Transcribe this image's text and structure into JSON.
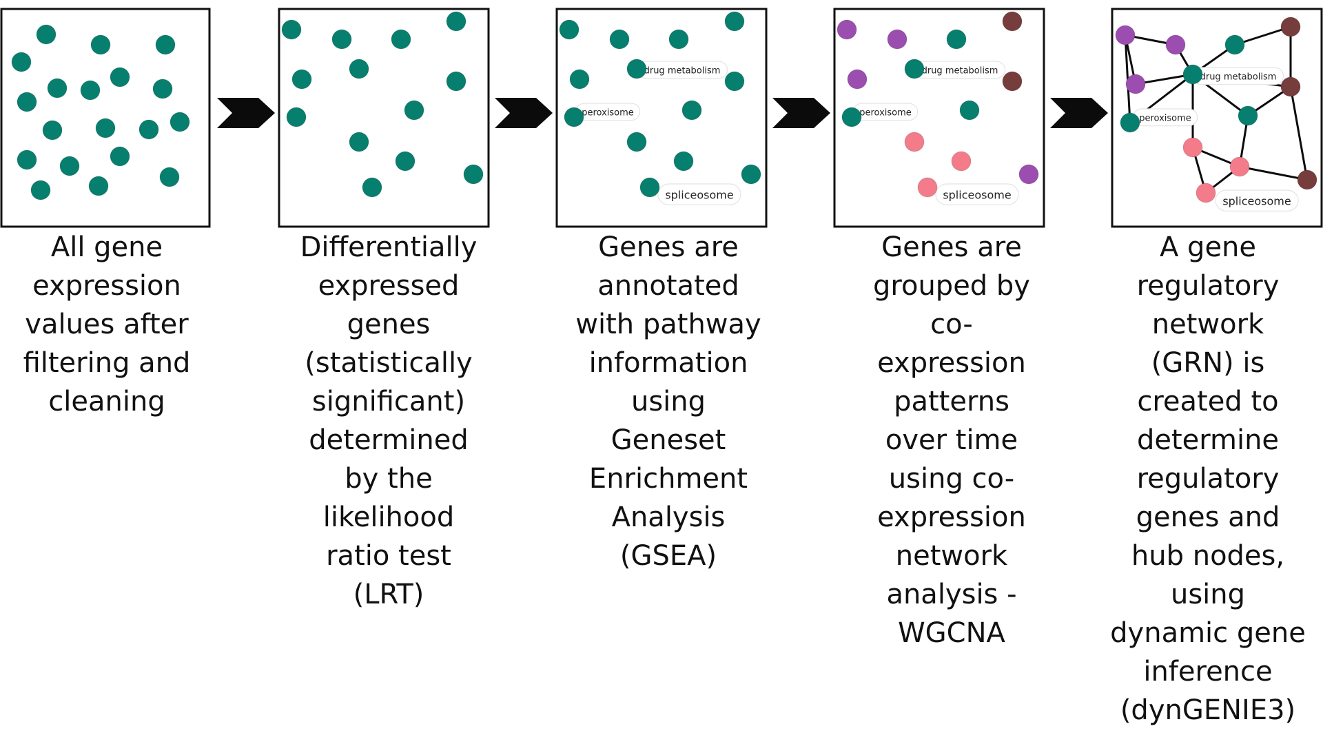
{
  "panels": [
    {
      "caption": "All gene\nexpression\nvalues after\nfiltering and\ncleaning",
      "node_colors": [
        "teal"
      ],
      "labels": []
    },
    {
      "caption": "Differentially\nexpressed\ngenes\n(statistically\nsignificant)\ndetermined\nby the\nlikelihood\nratio test\n(LRT)",
      "node_colors": [
        "teal"
      ],
      "labels": []
    },
    {
      "caption": "Genes are\nannotated\nwith pathway\ninformation\nusing\nGeneset\nEnrichment\nAnalysis\n(GSEA)",
      "node_colors": [
        "teal"
      ],
      "labels": [
        "drug metabolism",
        "peroxisome",
        "spliceosome"
      ]
    },
    {
      "caption": "Genes are\ngrouped by\nco-\nexpression\npatterns\nover time\nusing co-\nexpression\nnetwork\nanalysis -\nWGCNA",
      "node_colors": [
        "purple",
        "teal",
        "brown",
        "pink"
      ],
      "labels": [
        "drug metabolism",
        "peroxisome",
        "spliceosome"
      ]
    },
    {
      "caption": "A gene\nregulatory\nnetwork\n(GRN) is\ncreated to\ndetermine\nregulatory\ngenes and\nhub nodes,\nusing\ndynamic gene\ninference\n(dynGENIE3)",
      "node_colors": [
        "purple",
        "teal",
        "brown",
        "pink"
      ],
      "labels": [
        "drug metabolism",
        "peroxisome",
        "spliceosome"
      ]
    }
  ],
  "colors": {
    "teal": "#067f6e",
    "purple": "#9b4db0",
    "brown": "#773c3c",
    "pink": "#f47b8a",
    "frame": "#111111",
    "arrow": "#0b0b0b"
  }
}
